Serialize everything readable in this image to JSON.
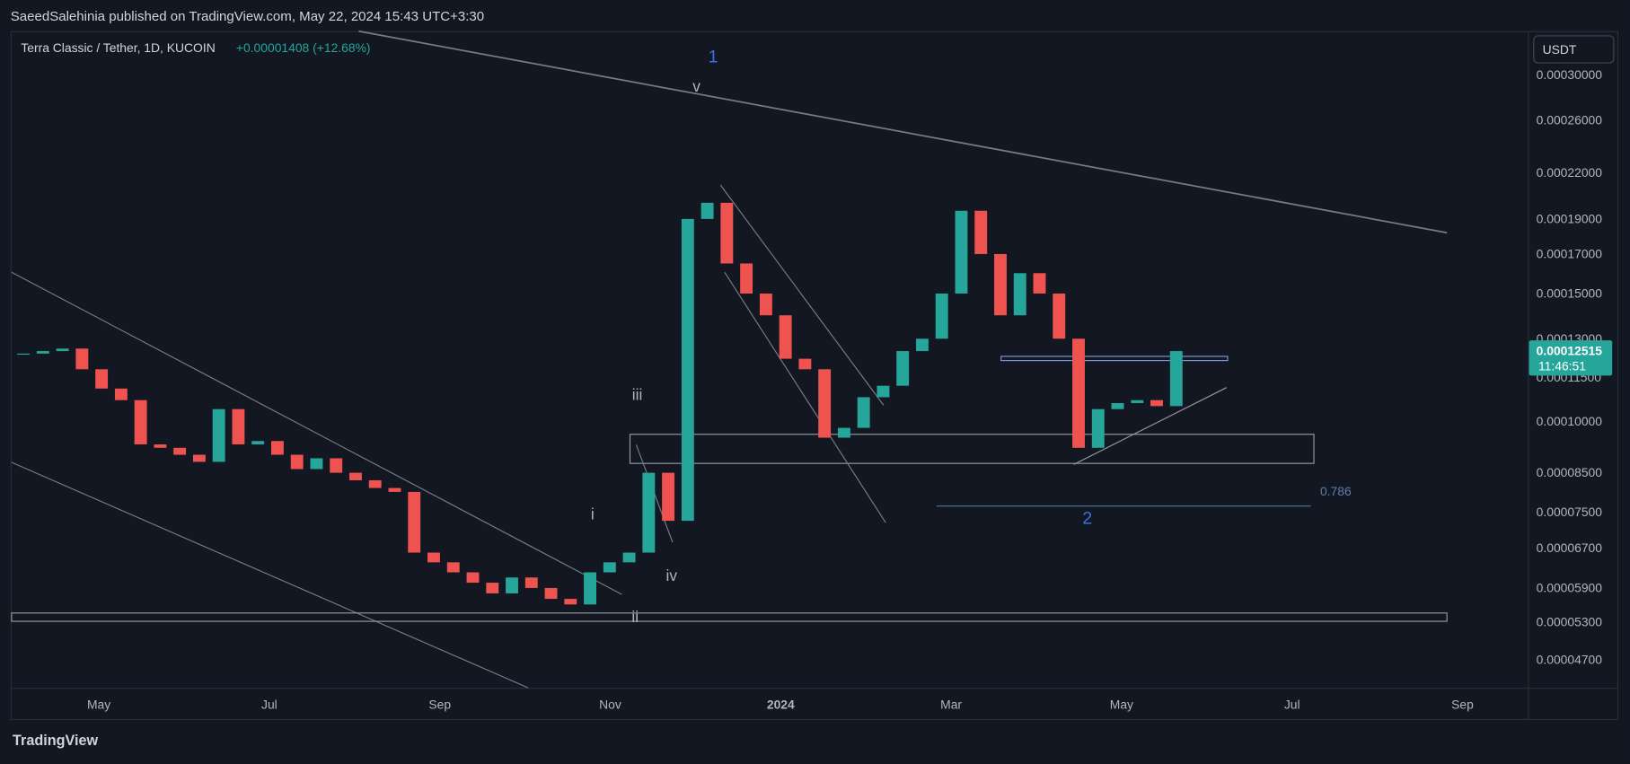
{
  "header": {
    "publisher": "SaeedSalehinia published on TradingView.com, May 22, 2024 15:43 UTC+3:30"
  },
  "chart_data": {
    "type": "candlestick",
    "symbol": "Terra Classic / Tether, 1D, KUCOIN",
    "change": "+0.00001408 (+12.68%)",
    "currency": "USDT",
    "log_scale": true,
    "up_color": "#26a69a",
    "down_color": "#ef5350",
    "values": [
      0.000124,
      0.000125,
      0.000126,
      0.000118,
      0.000111,
      0.000107,
      9.3e-05,
      9.2e-05,
      9e-05,
      8.8e-05,
      0.000104,
      9.3e-05,
      9.4e-05,
      9e-05,
      8.6e-05,
      8.9e-05,
      8.5e-05,
      8.3e-05,
      8.1e-05,
      8e-05,
      6.6e-05,
      6.4e-05,
      6.2e-05,
      6e-05,
      5.8e-05,
      6.1e-05,
      5.9e-05,
      5.7e-05,
      5.6e-05,
      6.2e-05,
      6.4e-05,
      6.6e-05,
      8.5e-05,
      7.3e-05,
      0.00019,
      0.0002,
      0.000165,
      0.00015,
      0.00014,
      0.000122,
      0.000118,
      9.5e-05,
      9.8e-05,
      0.000108,
      0.000112,
      0.000125,
      0.00013,
      0.00015,
      0.000195,
      0.00017,
      0.00014,
      0.00016,
      0.00015,
      0.00013,
      9.2e-05,
      0.000104,
      0.000106,
      0.000107,
      0.000105,
      0.000125
    ],
    "ylim": [
      4.3e-05,
      0.0003445
    ],
    "yticks": [
      {
        "value": 0.0003,
        "label": "0.00030000"
      },
      {
        "value": 0.00026,
        "label": "0.00026000"
      },
      {
        "value": 0.00022,
        "label": "0.00022000"
      },
      {
        "value": 0.00019,
        "label": "0.00019000"
      },
      {
        "value": 0.00017,
        "label": "0.00017000"
      },
      {
        "value": 0.00015,
        "label": "0.00015000"
      },
      {
        "value": 0.00013,
        "label": "0.00013000"
      },
      {
        "value": 0.000115,
        "label": "0.00011500"
      },
      {
        "value": 0.0001,
        "label": "0.00010000"
      },
      {
        "value": 8.5e-05,
        "label": "0.00008500"
      },
      {
        "value": 7.5e-05,
        "label": "0.00007500"
      },
      {
        "value": 6.7e-05,
        "label": "0.00006700"
      },
      {
        "value": 5.9e-05,
        "label": "0.00005900"
      },
      {
        "value": 5.3e-05,
        "label": "0.00005300"
      },
      {
        "value": 4.7e-05,
        "label": "0.00004700"
      }
    ],
    "xticks": [
      "May",
      "Jul",
      "Sep",
      "Nov",
      "2024",
      "Mar",
      "May",
      "Jul",
      "Sep"
    ],
    "last_price": {
      "value": 0.00012515,
      "label": "0.00012515"
    },
    "countdown": "11:46:51",
    "annotations": [
      "1",
      "v",
      "iii",
      "i",
      "iv",
      "ii",
      "2",
      "0.786"
    ]
  },
  "footer": {
    "brand": "TradingView"
  }
}
